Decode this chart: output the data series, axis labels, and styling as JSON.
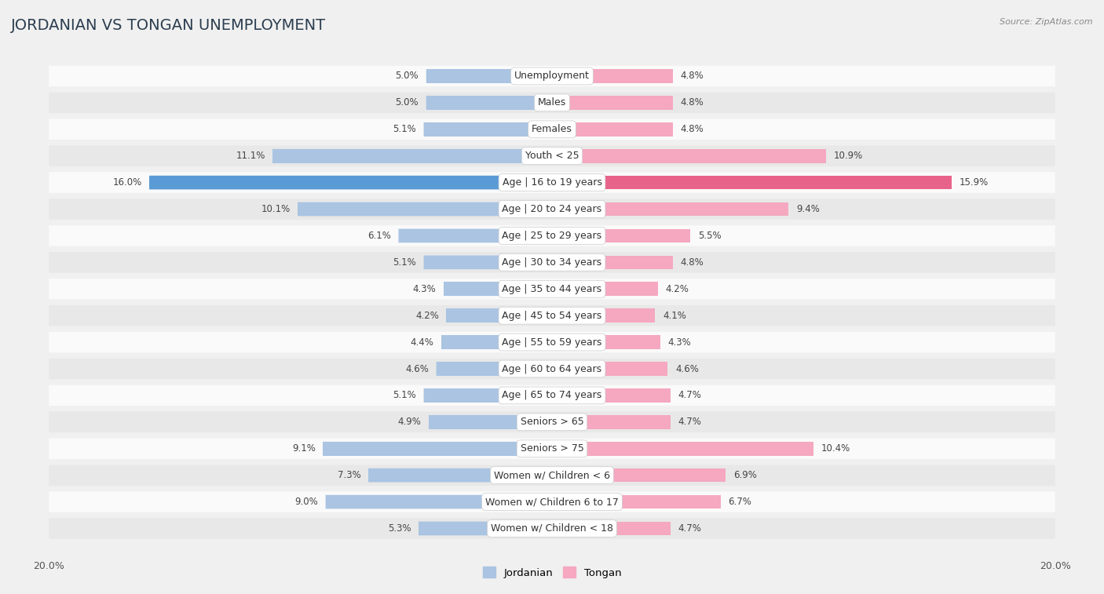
{
  "title": "JORDANIAN VS TONGAN UNEMPLOYMENT",
  "source": "Source: ZipAtlas.com",
  "categories": [
    "Unemployment",
    "Males",
    "Females",
    "Youth < 25",
    "Age | 16 to 19 years",
    "Age | 20 to 24 years",
    "Age | 25 to 29 years",
    "Age | 30 to 34 years",
    "Age | 35 to 44 years",
    "Age | 45 to 54 years",
    "Age | 55 to 59 years",
    "Age | 60 to 64 years",
    "Age | 65 to 74 years",
    "Seniors > 65",
    "Seniors > 75",
    "Women w/ Children < 6",
    "Women w/ Children 6 to 17",
    "Women w/ Children < 18"
  ],
  "jordanian": [
    5.0,
    5.0,
    5.1,
    11.1,
    16.0,
    10.1,
    6.1,
    5.1,
    4.3,
    4.2,
    4.4,
    4.6,
    5.1,
    4.9,
    9.1,
    7.3,
    9.0,
    5.3
  ],
  "tongan": [
    4.8,
    4.8,
    4.8,
    10.9,
    15.9,
    9.4,
    5.5,
    4.8,
    4.2,
    4.1,
    4.3,
    4.6,
    4.7,
    4.7,
    10.4,
    6.9,
    6.7,
    4.7
  ],
  "jordanian_color": "#aac4e2",
  "tongan_color": "#f5a8c0",
  "jordanian_highlight_color": "#5b9bd5",
  "tongan_highlight_color": "#e8638a",
  "axis_max": 20.0,
  "bg_color": "#f0f0f0",
  "row_bg_light": "#fafafa",
  "row_bg_dark": "#e8e8e8",
  "label_fontsize": 9,
  "title_fontsize": 14,
  "value_fontsize": 8.5,
  "source_fontsize": 8
}
